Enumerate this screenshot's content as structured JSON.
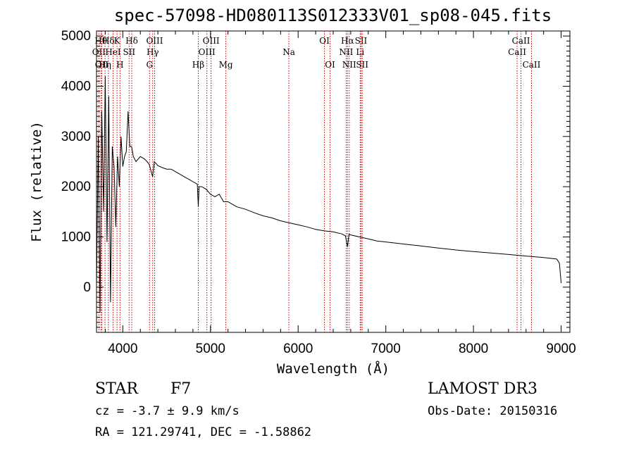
{
  "chart_data": {
    "type": "line",
    "title": "spec-57098-HD080113S012333V01_sp08-045.fits",
    "xlabel": "Wavelength (Å)",
    "ylabel": "Flux (relative)",
    "xlim": [
      3700,
      9100
    ],
    "ylim": [
      -900,
      5100
    ],
    "xticks": [
      4000,
      5000,
      6000,
      7000,
      8000,
      9000
    ],
    "yticks": [
      0,
      1000,
      2000,
      3000,
      4000,
      5000
    ],
    "line_color": "#000000",
    "marker_color": "#cc0000",
    "series": [
      {
        "name": "flux",
        "x": [
          3700,
          3720,
          3740,
          3760,
          3780,
          3800,
          3820,
          3840,
          3860,
          3880,
          3900,
          3920,
          3940,
          3960,
          3980,
          4000,
          4020,
          4040,
          4060,
          4080,
          4100,
          4120,
          4150,
          4200,
          4250,
          4300,
          4340,
          4360,
          4400,
          4450,
          4500,
          4550,
          4600,
          4650,
          4700,
          4750,
          4800,
          4850,
          4861,
          4870,
          4900,
          4950,
          5000,
          5050,
          5100,
          5150,
          5200,
          5250,
          5300,
          5400,
          5500,
          5600,
          5700,
          5800,
          5900,
          6000,
          6100,
          6200,
          6300,
          6400,
          6500,
          6540,
          6563,
          6580,
          6600,
          6700,
          6800,
          6900,
          7000,
          7200,
          7400,
          7600,
          7800,
          8000,
          8200,
          8400,
          8600,
          8800,
          8950,
          8980,
          9000
        ],
        "y": [
          0,
          3000,
          -500,
          3500,
          1500,
          4200,
          900,
          3800,
          -300,
          2800,
          2400,
          1200,
          2600,
          2000,
          3000,
          2400,
          2600,
          2700,
          3500,
          2800,
          2800,
          2600,
          2500,
          2600,
          2550,
          2450,
          2200,
          2500,
          2420,
          2380,
          2350,
          2350,
          2300,
          2250,
          2200,
          2150,
          2100,
          2050,
          1600,
          2000,
          2000,
          1950,
          1850,
          1800,
          1850,
          1700,
          1700,
          1650,
          1600,
          1550,
          1480,
          1420,
          1380,
          1320,
          1280,
          1240,
          1200,
          1150,
          1120,
          1100,
          1060,
          1020,
          800,
          1050,
          1040,
          1000,
          960,
          920,
          900,
          860,
          820,
          780,
          740,
          710,
          680,
          650,
          620,
          590,
          560,
          480,
          80
        ]
      }
    ],
    "lines": [
      {
        "label": "OII",
        "x": 3727,
        "row": 2
      },
      {
        "label": "Hθ",
        "x": 3750,
        "row": 1
      },
      {
        "label": "OII",
        "x": 3760,
        "row": 3
      },
      {
        "label": "Hη",
        "x": 3797,
        "row": 3
      },
      {
        "label": "Hδ",
        "x": 3835,
        "row": 1
      },
      {
        "label": "HeI",
        "x": 3889,
        "row": 2
      },
      {
        "label": "K",
        "x": 3934,
        "row": 1
      },
      {
        "label": "H",
        "x": 3968,
        "row": 3
      },
      {
        "label": "SII",
        "x": 4072,
        "row": 2
      },
      {
        "label": "Hδ",
        "x": 4102,
        "row": 1
      },
      {
        "label": "G",
        "x": 4305,
        "row": 3
      },
      {
        "label": "Hγ",
        "x": 4341,
        "row": 2
      },
      {
        "label": "OIII",
        "x": 4363,
        "row": 1
      },
      {
        "label": "Hβ",
        "x": 4861,
        "row": 3
      },
      {
        "label": "OIII",
        "x": 4959,
        "row": 2
      },
      {
        "label": "OIII",
        "x": 5007,
        "row": 1
      },
      {
        "label": "Mg",
        "x": 5175,
        "row": 3
      },
      {
        "label": "Na",
        "x": 5894,
        "row": 2
      },
      {
        "label": "OI",
        "x": 6300,
        "row": 1
      },
      {
        "label": "OI",
        "x": 6364,
        "row": 3
      },
      {
        "label": "NII",
        "x": 6548,
        "row": 2
      },
      {
        "label": "Hα",
        "x": 6563,
        "row": 1
      },
      {
        "label": "NII",
        "x": 6583,
        "row": 3
      },
      {
        "label": "Li",
        "x": 6708,
        "row": 2
      },
      {
        "label": "SII",
        "x": 6717,
        "row": 1
      },
      {
        "label": "SII",
        "x": 6731,
        "row": 3
      },
      {
        "label": "CaII",
        "x": 8498,
        "row": 2
      },
      {
        "label": "CaII",
        "x": 8542,
        "row": 1
      },
      {
        "label": "CaII",
        "x": 8662,
        "row": 3
      }
    ]
  },
  "info": {
    "object_class": "STAR",
    "subclass": "F7",
    "survey": "LAMOST DR3",
    "cz": "cz = -3.7 ± 9.9 km/s",
    "obs_date": "Obs-Date: 20150316",
    "coords": "RA = 121.29741, DEC =  -1.58862"
  }
}
